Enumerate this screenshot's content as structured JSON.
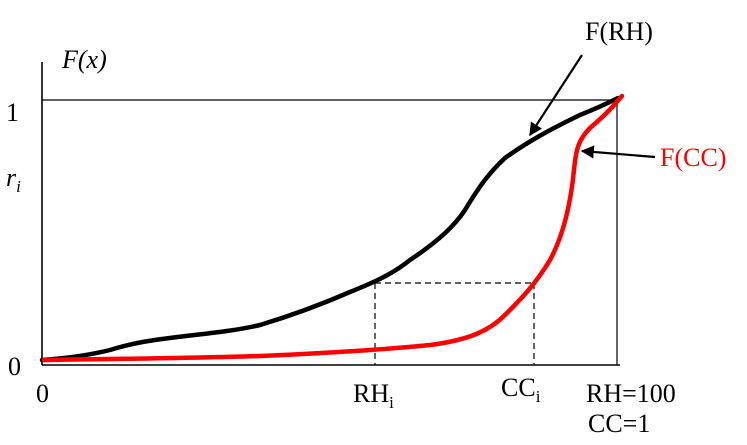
{
  "diagram": {
    "y_axis_label": "F(x)",
    "y_tick_top": "1",
    "y_marker_main": "r",
    "y_marker_sub": "i",
    "y_tick_bottom": "0",
    "x_tick_origin": "0",
    "x_marker_rh_main": "RH",
    "x_marker_rh_sub": "i",
    "x_marker_cc_main": "CC",
    "x_marker_cc_sub": "i",
    "x_end_rh": "RH=100",
    "x_end_cc": "CC=1",
    "curve_rh_label": "F(RH)",
    "curve_cc_label": "F(CC)"
  },
  "colors": {
    "curve_rh": "#000000",
    "curve_cc": "#ff0000",
    "axes": "#000000"
  }
}
